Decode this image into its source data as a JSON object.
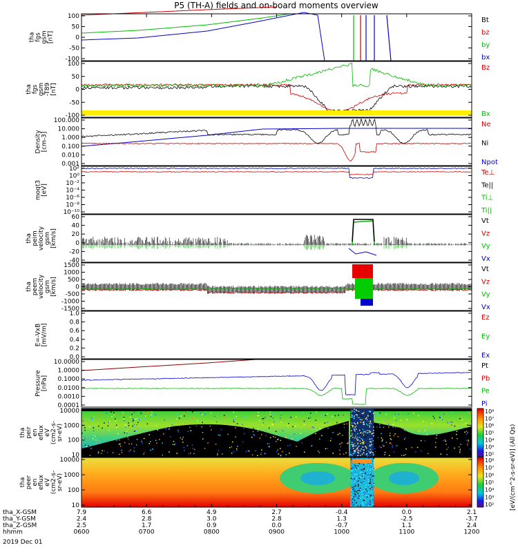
{
  "title": "P5 (TH-A) fields and on-board moments overview",
  "panels": [
    {
      "id": "p1",
      "ylabel": [
        "tha",
        "fgs",
        "gsm",
        "[nT]"
      ],
      "ticks": [
        "100",
        "50",
        "0",
        "-50",
        "-100"
      ],
      "legend": [
        {
          "text": "Bt",
          "color": "#000000"
        },
        {
          "text": "bz",
          "color": "#cc0000"
        },
        {
          "text": "by",
          "color": "#00bb00"
        },
        {
          "text": "bx",
          "color": "#0000cc"
        }
      ]
    },
    {
      "id": "p2",
      "ylabel": [
        "tha",
        "fgs",
        "gsm",
        "-T89",
        "[nT]"
      ],
      "ticks": [
        "100",
        "50",
        "0",
        "-50",
        "-100"
      ],
      "legend": [
        {
          "text": "Bz",
          "color": "#cc0000"
        },
        {
          "text": "Bx",
          "color": "#00bb00"
        }
      ]
    },
    {
      "id": "p3",
      "ylabel": [
        "Density",
        "[cm-3]"
      ],
      "ticks": [
        "100.000",
        "10.000",
        "1.000",
        "0.100",
        "0.010",
        "0.001"
      ],
      "legend": [
        {
          "text": "Ne",
          "color": "#cc0000"
        },
        {
          "text": "Ni",
          "color": "#000000"
        },
        {
          "text": "Npot",
          "color": "#0000cc"
        }
      ]
    },
    {
      "id": "p4",
      "ylabel": [
        "moqt3",
        "[eV]"
      ],
      "ticks": [
        "10²",
        "10⁰",
        "10⁻²",
        "10⁻⁴",
        "10⁻⁶",
        "10⁻⁸",
        "10⁻¹⁰"
      ],
      "legend": [
        {
          "text": "Te⊥",
          "color": "#cc0000"
        },
        {
          "text": "Te||",
          "color": "#000000"
        },
        {
          "text": "Ti⊥",
          "color": "#00bb00"
        },
        {
          "text": "Ti||",
          "color": "#00bb00"
        }
      ]
    },
    {
      "id": "p5",
      "ylabel": [
        "tha",
        "peim",
        "velocity",
        "gsm",
        "[km/s]"
      ],
      "ticks": [
        "60",
        "40",
        "20",
        "0",
        "-20",
        "-40"
      ],
      "legend": [
        {
          "text": "Vt",
          "color": "#000000"
        },
        {
          "text": "Vz",
          "color": "#cc0000"
        },
        {
          "text": "Vy",
          "color": "#00bb00"
        },
        {
          "text": "Vx",
          "color": "#0000cc"
        }
      ]
    },
    {
      "id": "p6",
      "ylabel": [
        "tha",
        "peem",
        "velocity",
        "gsm",
        "[km/s]"
      ],
      "ticks": [
        "1500",
        "1000",
        "500",
        "0",
        "-500",
        "-1000",
        "-1500"
      ],
      "legend": [
        {
          "text": "Vt",
          "color": "#000000"
        },
        {
          "text": "Vz",
          "color": "#cc0000"
        },
        {
          "text": "Vy",
          "color": "#00bb00"
        },
        {
          "text": "Vx",
          "color": "#0000cc"
        }
      ]
    },
    {
      "id": "p7",
      "ylabel": [
        "E=-VxB",
        "[mV/m]"
      ],
      "ticks": [
        "1.0",
        "0.8",
        "0.6",
        "0.4",
        "0.2",
        "0.0"
      ],
      "legend": [
        {
          "text": "Ez",
          "color": "#cc0000"
        },
        {
          "text": "Ey",
          "color": "#00bb00"
        },
        {
          "text": "Ex",
          "color": "#0000cc"
        }
      ]
    },
    {
      "id": "p8",
      "ylabel": [
        "Pressure",
        "[nPa]"
      ],
      "ticks": [
        "10.0000",
        "1.0000",
        "0.1000",
        "0.0100",
        "0.0010",
        "0.0001"
      ],
      "legend": [
        {
          "text": "Pt",
          "color": "#000000"
        },
        {
          "text": "Pb",
          "color": "#cc0000"
        },
        {
          "text": "Pe",
          "color": "#00bb00"
        },
        {
          "text": "Pi",
          "color": "#0000cc"
        }
      ]
    },
    {
      "id": "p9",
      "ylabel": [
        "tha",
        "peir",
        "en",
        "eflux",
        "eV",
        "(cm2-s-",
        "sr-eV)"
      ],
      "ticks": [
        "10000",
        "1000",
        "100",
        "10"
      ]
    },
    {
      "id": "p10",
      "ylabel": [
        "tha",
        "peer",
        "en",
        "eflux",
        "eV",
        "(cm2-s-",
        "sr-eV)"
      ],
      "ticks": [
        "10000",
        "1000",
        "100",
        "10"
      ]
    }
  ],
  "colorbar": {
    "ticks": [
      "10⁸",
      "10⁷",
      "10⁶",
      "10⁵",
      "10⁴",
      "10³",
      "10²"
    ],
    "label": "[eV/(cm^2-s-sr-eV)] (All Qs)"
  },
  "xaxis": {
    "rows": [
      {
        "label": "tha_X-GSM",
        "values": [
          "7.9",
          "6.6",
          "4.9",
          "2.7",
          "-0.4",
          "0.0",
          "2.1"
        ]
      },
      {
        "label": "tha_Y-GSM",
        "values": [
          "2.4",
          "2.8",
          "3.0",
          "2.8",
          "1.3",
          "-2.5",
          "-3.7"
        ]
      },
      {
        "label": "tha_Z-GSM",
        "values": [
          "2.5",
          "1.7",
          "0.9",
          "0.0",
          "-0.7",
          "1.1",
          "2.4"
        ]
      },
      {
        "label": "hhmm",
        "values": [
          "0600",
          "0700",
          "0800",
          "0900",
          "1000",
          "1100",
          "1200"
        ]
      }
    ],
    "date": "2019 Dec 01"
  },
  "chart_data": [
    {
      "type": "line",
      "title": "P5 (TH-A) fields and on-board moments overview",
      "ylabel": "tha fgs gsm [nT]",
      "ylim": [
        -100,
        100
      ],
      "x": [
        "0600",
        "0700",
        "0800",
        "0900",
        "1000",
        "1100",
        "1200"
      ],
      "series": [
        {
          "name": "Bt",
          "values": [
            95,
            null,
            null,
            null,
            null,
            null,
            null
          ]
        },
        {
          "name": "bz",
          "values": [
            95,
            null,
            null,
            null,
            null,
            null,
            null
          ]
        },
        {
          "name": "by",
          "values": [
            10,
            35,
            60,
            null,
            null,
            null,
            null
          ]
        },
        {
          "name": "bx",
          "values": [
            -5,
            5,
            25,
            70,
            null,
            null,
            null
          ]
        }
      ]
    },
    {
      "type": "line",
      "ylabel": "tha fgs gsm -T89 [nT]",
      "ylim": [
        -100,
        100
      ],
      "x": [
        "0600",
        "0700",
        "0800",
        "0900",
        "1000",
        "1100",
        "1200"
      ],
      "series": [
        {
          "name": "Bz",
          "values": [
            5,
            3,
            2,
            0,
            -90,
            -5,
            5
          ]
        },
        {
          "name": "Bx",
          "values": [
            2,
            5,
            10,
            30,
            -100,
            40,
            5
          ]
        }
      ]
    },
    {
      "type": "line",
      "ylabel": "Density [cm-3]",
      "ylim": [
        0.001,
        100
      ],
      "x": [
        "0600",
        "0700",
        "0800",
        "0900",
        "1000",
        "1100",
        "1200"
      ],
      "series": [
        {
          "name": "Ne",
          "values": [
            0.3,
            0.4,
            0.5,
            0.6,
            0.01,
            0.7,
            0.1
          ]
        },
        {
          "name": "Ni",
          "values": [
            2,
            5,
            15,
            25,
            60,
            20,
            5
          ]
        },
        {
          "name": "Npot",
          "values": [
            5,
            8,
            15,
            20,
            20,
            20,
            20
          ]
        }
      ]
    },
    {
      "type": "line",
      "ylabel": "moqt3 [eV]",
      "ylim": [
        1e-10,
        100
      ],
      "x": [
        "0600",
        "0700",
        "0800",
        "0900",
        "1000",
        "1100",
        "1200"
      ],
      "series": [
        {
          "name": "Te⊥",
          "values": [
            50,
            50,
            50,
            50,
            20,
            50,
            50
          ]
        },
        {
          "name": "Ti⊥",
          "values": [
            100,
            100,
            100,
            100,
            10,
            100,
            100
          ]
        }
      ]
    },
    {
      "type": "line",
      "ylabel": "tha peim velocity gsm [km/s]",
      "ylim": [
        -40,
        60
      ],
      "x": [
        "0600",
        "0700",
        "0800",
        "0900",
        "1000",
        "1100",
        "1200"
      ],
      "series": [
        {
          "name": "Vt",
          "values": [
            10,
            8,
            5,
            3,
            50,
            8,
            3
          ]
        },
        {
          "name": "Vz",
          "values": [
            0,
            0,
            0,
            0,
            10,
            0,
            0
          ]
        },
        {
          "name": "Vy",
          "values": [
            -2,
            -2,
            0,
            0,
            45,
            0,
            0
          ]
        },
        {
          "name": "Vx",
          "values": [
            0,
            0,
            0,
            0,
            5,
            -5,
            0
          ]
        }
      ]
    },
    {
      "type": "line",
      "ylabel": "tha peem velocity gsm [km/s]",
      "ylim": [
        -1500,
        1500
      ],
      "x": [
        "0600",
        "0700",
        "0800",
        "0900",
        "1000",
        "1100",
        "1200"
      ],
      "series": [
        {
          "name": "Vt",
          "values": [
            100,
            100,
            100,
            100,
            1500,
            100,
            100
          ]
        },
        {
          "name": "Vz",
          "values": [
            -50,
            -50,
            -100,
            -100,
            1000,
            -100,
            -50
          ]
        },
        {
          "name": "Vy",
          "values": [
            0,
            0,
            0,
            0,
            500,
            0,
            0
          ]
        },
        {
          "name": "Vx",
          "values": [
            0,
            0,
            0,
            0,
            -500,
            0,
            0
          ]
        }
      ]
    },
    {
      "type": "line",
      "ylabel": "E=-VxB [mV/m]",
      "ylim": [
        0,
        1
      ],
      "series": []
    },
    {
      "type": "line",
      "ylabel": "Pressure [nPa]",
      "ylim": [
        0.0001,
        10
      ],
      "x": [
        "0600",
        "0700",
        "0800",
        "0900",
        "1000",
        "1100",
        "1200"
      ],
      "series": [
        {
          "name": "Pt",
          "values": [
            3,
            7,
            10,
            null,
            null,
            null,
            null
          ]
        },
        {
          "name": "Pb",
          "values": [
            3,
            7,
            10,
            null,
            null,
            null,
            null
          ]
        },
        {
          "name": "Pe",
          "values": [
            0.05,
            0.06,
            0.08,
            0.1,
            0.001,
            0.1,
            0.08
          ]
        },
        {
          "name": "Pi",
          "values": [
            0.3,
            0.35,
            0.5,
            0.6,
            0.001,
            1.5,
            1.0
          ]
        }
      ]
    },
    {
      "type": "heatmap",
      "ylabel": "tha peir en eflux eV (cm2-s- sr-eV)",
      "ylim": [
        10,
        30000
      ],
      "zlim": [
        100,
        100000000
      ]
    },
    {
      "type": "heatmap",
      "ylabel": "tha peer en eflux eV (cm2-s- sr-eV)",
      "ylim": [
        10,
        30000
      ],
      "zlim": [
        100,
        100000000
      ]
    }
  ]
}
